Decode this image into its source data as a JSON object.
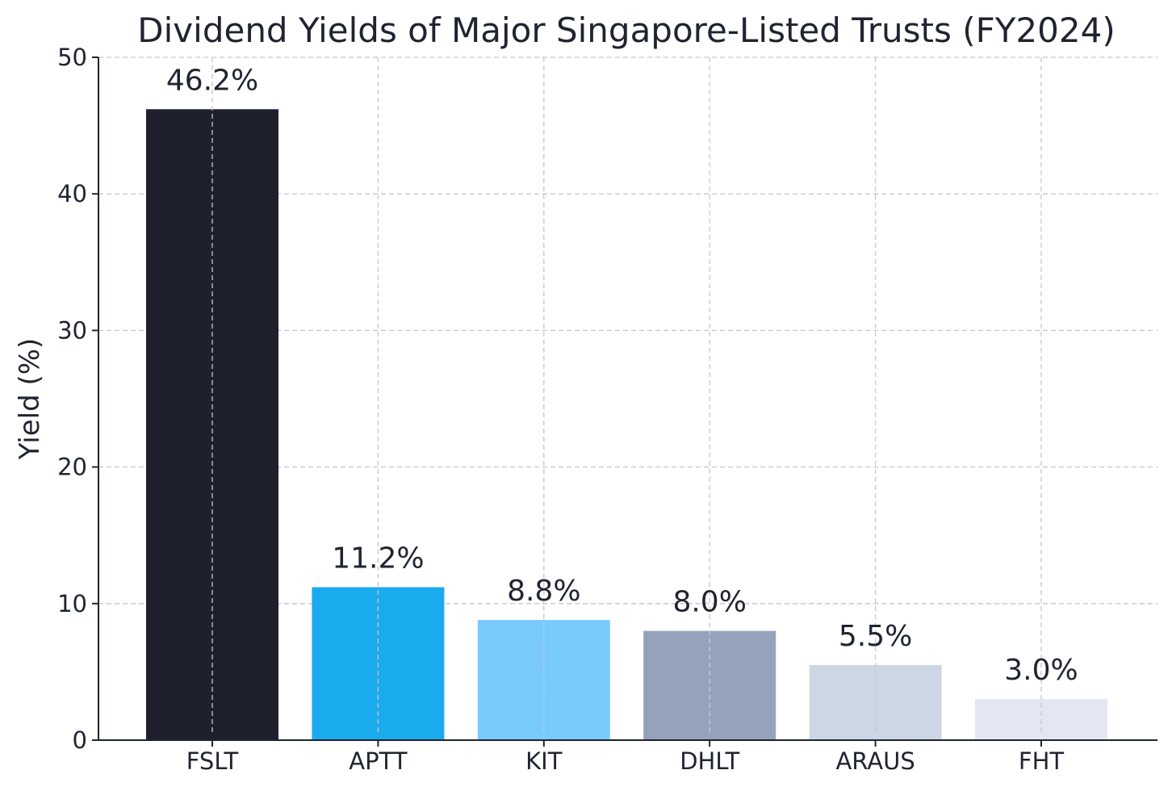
{
  "chart_data": {
    "type": "bar",
    "title": "Dividend Yields of Major Singapore-Listed Trusts (FY2024)",
    "xlabel": "",
    "ylabel": "Yield (%)",
    "ylim": [
      0,
      50
    ],
    "yticks": [
      0,
      10,
      20,
      30,
      40,
      50
    ],
    "categories": [
      "FSLT",
      "APTT",
      "KIT",
      "DHLT",
      "ARAUS",
      "FHT"
    ],
    "values": [
      46.2,
      11.2,
      8.8,
      8.0,
      5.5,
      3.0
    ],
    "data_labels": [
      "46.2%",
      "11.2%",
      "8.8%",
      "8.0%",
      "5.5%",
      "3.0%"
    ],
    "colors": [
      "#1e202d",
      "#1aaaee",
      "#7acbfd",
      "#94a3bb",
      "#cdd6e4",
      "#e3e7f1"
    ],
    "grid": true,
    "legend": "none"
  }
}
